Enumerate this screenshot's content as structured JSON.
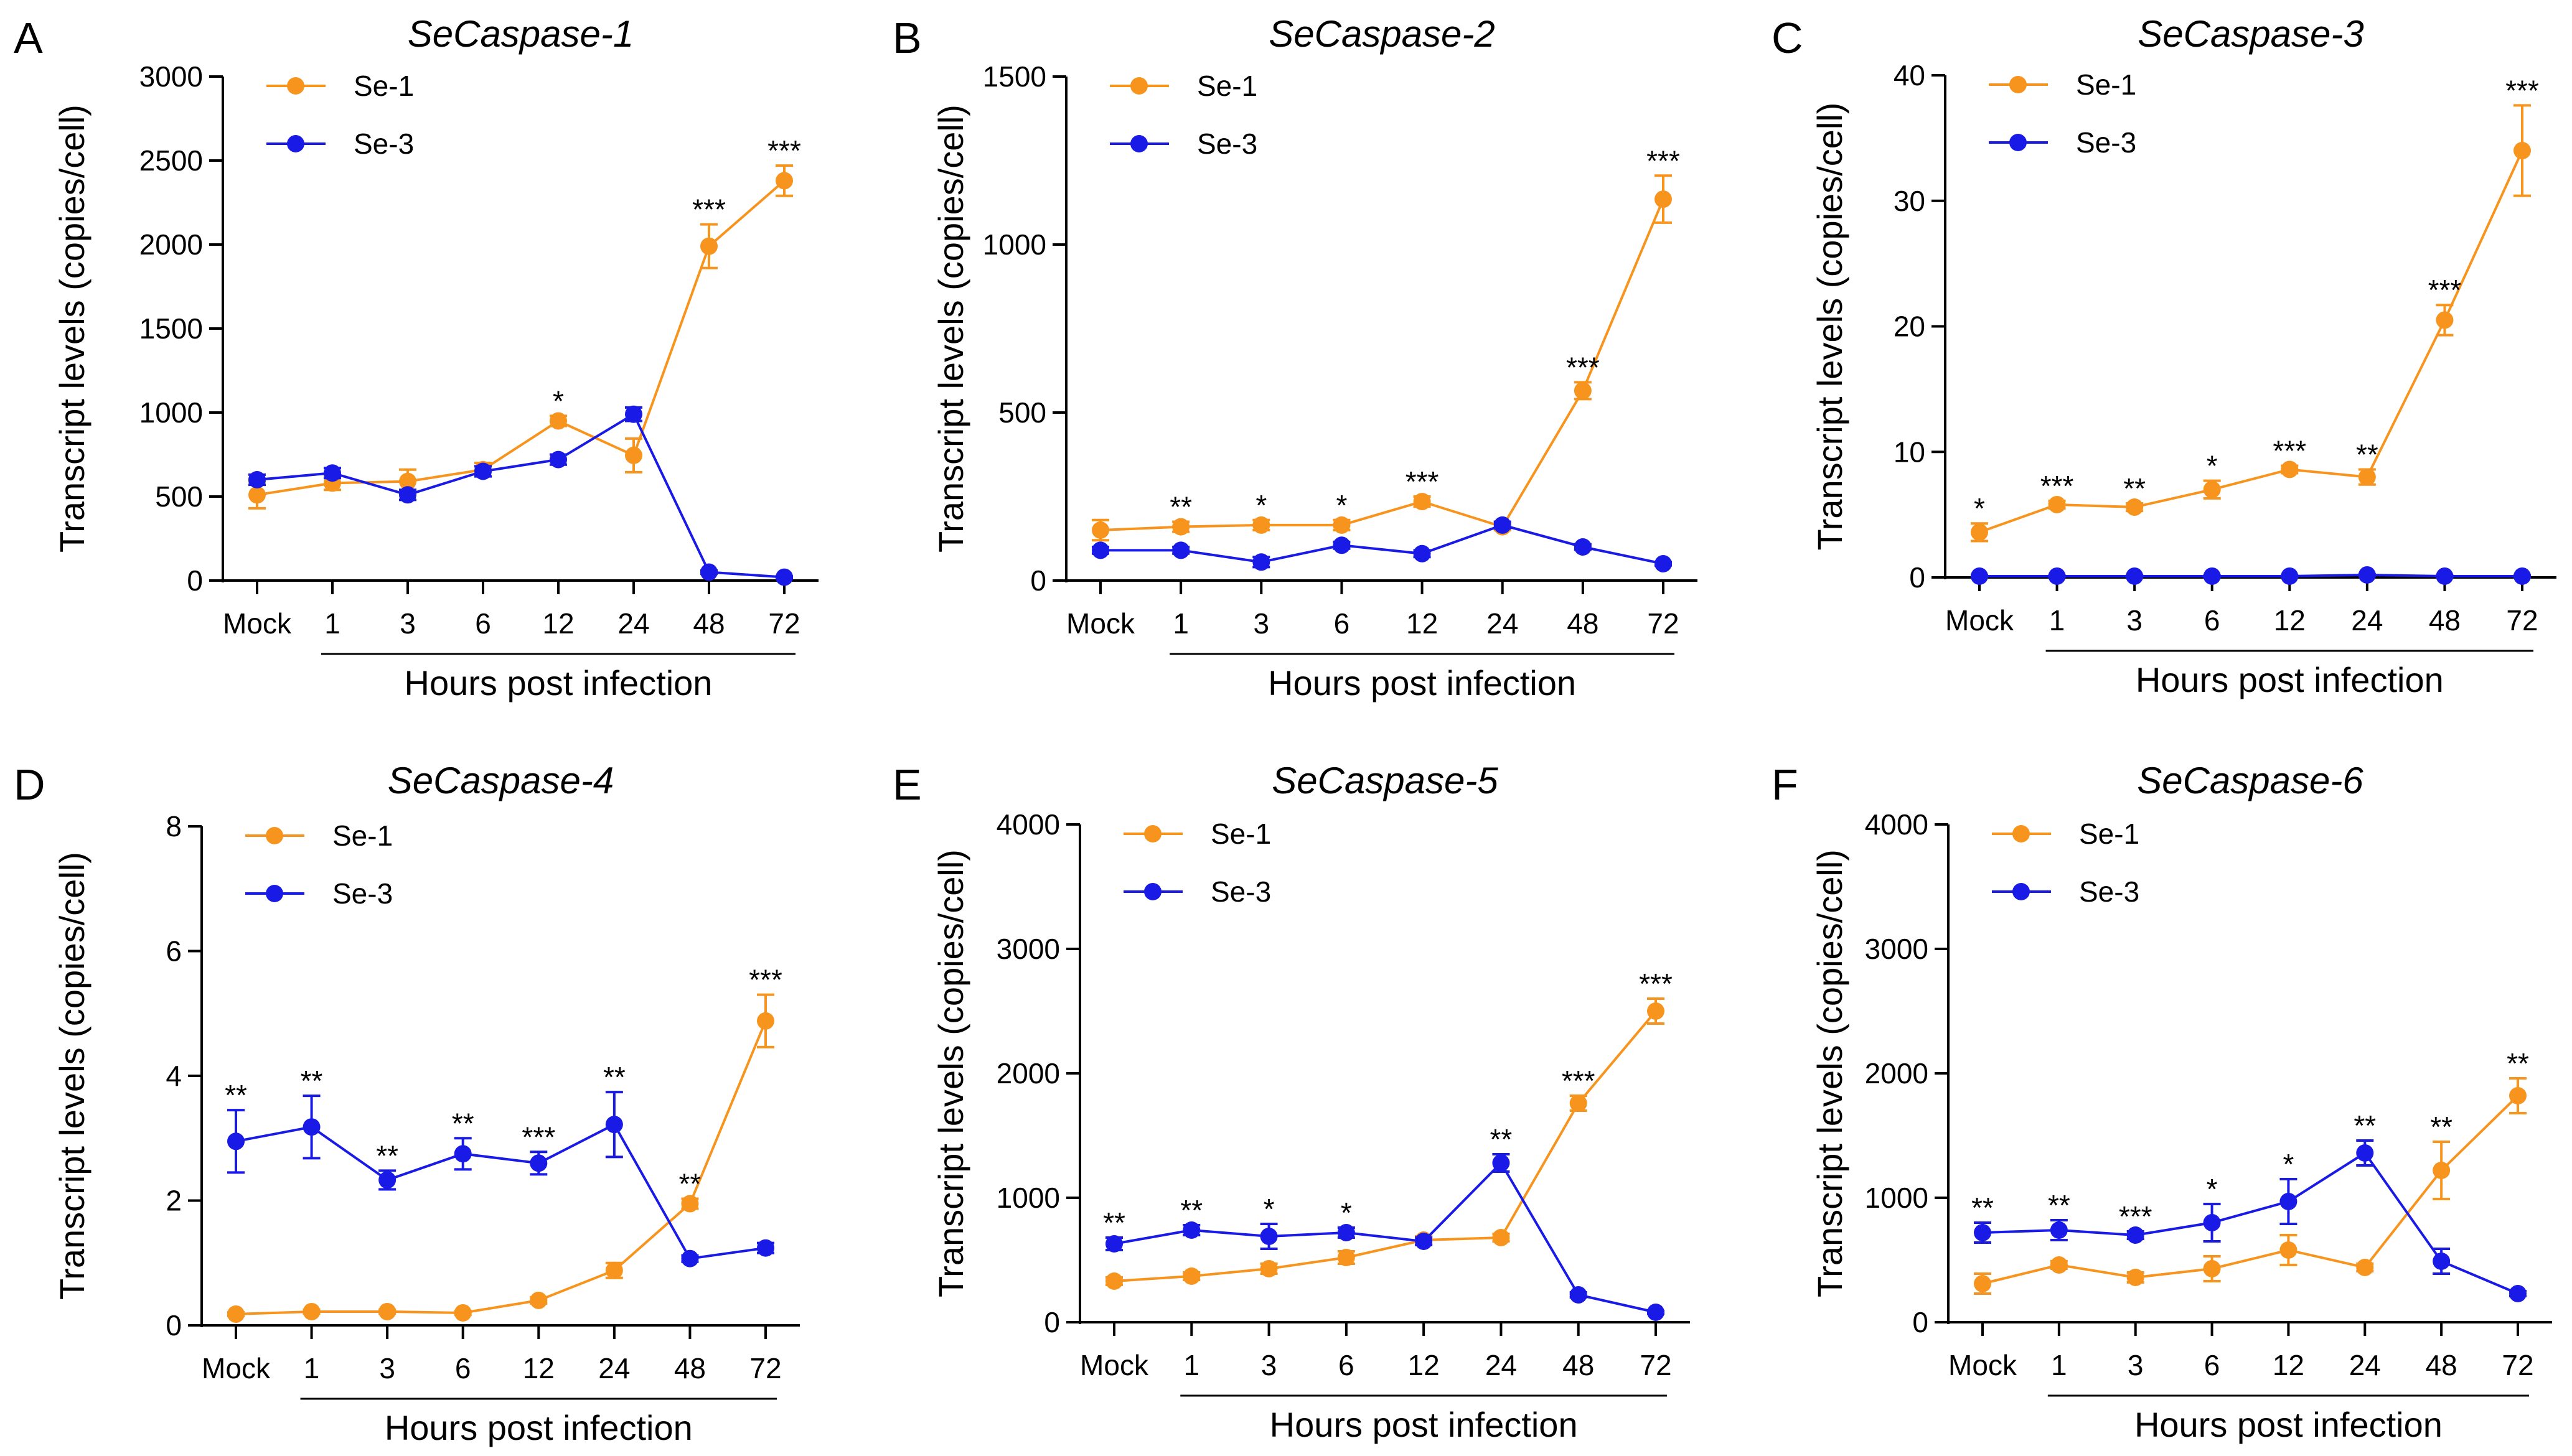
{
  "colors": {
    "se1": "#F7941D",
    "se3": "#1A1AE6",
    "axis": "#000000"
  },
  "chart_data": [
    {
      "panel": "A",
      "type": "line",
      "title": "SeCaspase-1",
      "xlabel": "Hours post infection",
      "ylabel": "Transcript levels (copies/cell)",
      "categories": [
        "Mock",
        "1",
        "3",
        "6",
        "12",
        "24",
        "48",
        "72"
      ],
      "ylim": [
        0,
        3000
      ],
      "yticks": [
        0,
        500,
        1000,
        1500,
        2000,
        2500,
        3000
      ],
      "legend": "top-left",
      "series": [
        {
          "name": "Se-1",
          "values": [
            510,
            580,
            590,
            660,
            950,
            745,
            1990,
            2380
          ],
          "errors": [
            80,
            40,
            70,
            40,
            30,
            100,
            130,
            90
          ]
        },
        {
          "name": "Se-3",
          "values": [
            600,
            640,
            510,
            650,
            720,
            990,
            50,
            20
          ],
          "errors": [
            30,
            30,
            30,
            30,
            30,
            40,
            10,
            5
          ]
        }
      ],
      "significance": [
        "",
        "",
        "",
        "",
        "*",
        "",
        "***",
        "***"
      ]
    },
    {
      "panel": "B",
      "type": "line",
      "title": "SeCaspase-2",
      "xlabel": "Hours post infection",
      "ylabel": "Transcript levels (copies/cell)",
      "categories": [
        "Mock",
        "1",
        "3",
        "6",
        "12",
        "24",
        "48",
        "72"
      ],
      "ylim": [
        0,
        1500
      ],
      "yticks": [
        0,
        500,
        1000,
        1500
      ],
      "legend": "top-left",
      "series": [
        {
          "name": "Se-1",
          "values": [
            150,
            160,
            165,
            165,
            235,
            160,
            565,
            1135
          ],
          "errors": [
            30,
            15,
            15,
            15,
            15,
            10,
            25,
            70
          ]
        },
        {
          "name": "Se-3",
          "values": [
            90,
            90,
            55,
            105,
            80,
            165,
            100,
            50
          ],
          "errors": [
            10,
            10,
            15,
            10,
            10,
            10,
            8,
            5
          ]
        }
      ],
      "significance": [
        "",
        "**",
        "*",
        "*",
        "***",
        "",
        "***",
        "***"
      ]
    },
    {
      "panel": "C",
      "type": "line",
      "title": "SeCaspase-3",
      "xlabel": "Hours post infection",
      "ylabel": "Transcript levels (copies/cell)",
      "categories": [
        "Mock",
        "1",
        "3",
        "6",
        "12",
        "24",
        "48",
        "72"
      ],
      "ylim": [
        0,
        40
      ],
      "yticks": [
        0,
        10,
        20,
        30,
        40
      ],
      "legend": "top-left",
      "series": [
        {
          "name": "Se-1",
          "values": [
            3.6,
            5.8,
            5.6,
            7.0,
            8.6,
            8.0,
            20.5,
            34.0
          ],
          "errors": [
            0.7,
            0.3,
            0.3,
            0.7,
            0.3,
            0.6,
            1.2,
            3.6
          ]
        },
        {
          "name": "Se-3",
          "values": [
            0.1,
            0.1,
            0.1,
            0.1,
            0.1,
            0.2,
            0.1,
            0.1
          ],
          "errors": [
            0.05,
            0.05,
            0.05,
            0.05,
            0.05,
            0.05,
            0.05,
            0.05
          ]
        }
      ],
      "significance": [
        "*",
        "***",
        "**",
        "*",
        "***",
        "**",
        "***",
        "***"
      ]
    },
    {
      "panel": "D",
      "type": "line",
      "title": "SeCaspase-4",
      "xlabel": "Hours post infection",
      "ylabel": "Transcript levels (copies/cell)",
      "categories": [
        "Mock",
        "1",
        "3",
        "6",
        "12",
        "24",
        "48",
        "72"
      ],
      "ylim": [
        0,
        8
      ],
      "yticks": [
        0,
        2,
        4,
        6,
        8
      ],
      "legend": "top-left",
      "series": [
        {
          "name": "Se-1",
          "values": [
            0.18,
            0.22,
            0.22,
            0.2,
            0.4,
            0.88,
            1.95,
            4.88
          ],
          "errors": [
            0.03,
            0.03,
            0.03,
            0.03,
            0.05,
            0.12,
            0.08,
            0.42
          ]
        },
        {
          "name": "Se-3",
          "values": [
            2.95,
            3.18,
            2.33,
            2.75,
            2.6,
            3.22,
            1.07,
            1.24
          ],
          "errors": [
            0.5,
            0.5,
            0.15,
            0.25,
            0.18,
            0.52,
            0.05,
            0.08
          ]
        }
      ],
      "significance": [
        "**",
        "**",
        "**",
        "**",
        "***",
        "**",
        "**",
        "***"
      ]
    },
    {
      "panel": "E",
      "type": "line",
      "title": "SeCaspase-5",
      "xlabel": "Hours post infection",
      "ylabel": "Transcript levels (copies/cell)",
      "categories": [
        "Mock",
        "1",
        "3",
        "6",
        "12",
        "24",
        "48",
        "72"
      ],
      "ylim": [
        0,
        4000
      ],
      "yticks": [
        0,
        1000,
        2000,
        3000,
        4000
      ],
      "legend": "top-left",
      "series": [
        {
          "name": "Se-1",
          "values": [
            330,
            370,
            430,
            520,
            660,
            680,
            1760,
            2500
          ],
          "errors": [
            30,
            30,
            40,
            50,
            30,
            30,
            60,
            100
          ]
        },
        {
          "name": "Se-3",
          "values": [
            630,
            740,
            690,
            720,
            650,
            1280,
            220,
            80
          ],
          "errors": [
            50,
            40,
            100,
            40,
            30,
            70,
            20,
            10
          ]
        }
      ],
      "significance": [
        "**",
        "**",
        "*",
        "*",
        "",
        "**",
        "***",
        "***"
      ]
    },
    {
      "panel": "F",
      "type": "line",
      "title": "SeCaspase-6",
      "xlabel": "Hours post infection",
      "ylabel": "Transcript levels (copies/cell)",
      "categories": [
        "Mock",
        "1",
        "3",
        "6",
        "12",
        "24",
        "48",
        "72"
      ],
      "ylim": [
        0,
        4000
      ],
      "yticks": [
        0,
        1000,
        2000,
        3000,
        4000
      ],
      "legend": "top-left",
      "series": [
        {
          "name": "Se-1",
          "values": [
            310,
            460,
            360,
            430,
            580,
            440,
            1220,
            1820
          ],
          "errors": [
            80,
            30,
            40,
            100,
            120,
            30,
            230,
            140
          ]
        },
        {
          "name": "Se-3",
          "values": [
            720,
            740,
            700,
            800,
            970,
            1360,
            490,
            230
          ],
          "errors": [
            80,
            80,
            30,
            150,
            180,
            100,
            100,
            20
          ]
        }
      ],
      "significance": [
        "**",
        "**",
        "***",
        "*",
        "*",
        "**",
        "**",
        "**"
      ]
    }
  ]
}
